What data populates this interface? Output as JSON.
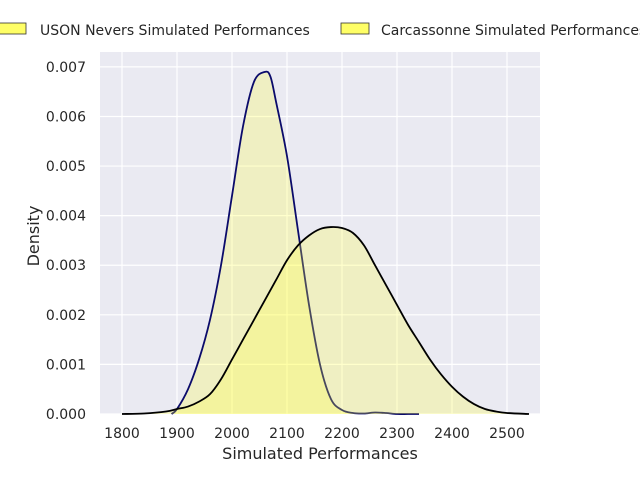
{
  "chart_data": {
    "type": "area",
    "xlabel": "Simulated Performances",
    "ylabel": "Density",
    "xlim": [
      1760,
      2560
    ],
    "ylim": [
      0,
      0.0073
    ],
    "x_ticks": [
      1800,
      1900,
      2000,
      2100,
      2200,
      2300,
      2400,
      2500
    ],
    "x_tick_labels": [
      "1800",
      "1900",
      "2000",
      "2100",
      "2200",
      "2300",
      "2400",
      "2500"
    ],
    "y_ticks": [
      0,
      0.001,
      0.002,
      0.003,
      0.004,
      0.005,
      0.006,
      0.007
    ],
    "y_tick_labels": [
      "0.000",
      "0.001",
      "0.002",
      "0.003",
      "0.004",
      "0.005",
      "0.006",
      "0.007"
    ],
    "grid": true,
    "legend_position": "top",
    "series": [
      {
        "name": "USON Nevers Simulated Performances",
        "fill_color": "#ffff33",
        "fill_opacity": 0.25,
        "line_color": "#0b0b6b",
        "x": [
          1890,
          1900,
          1920,
          1940,
          1960,
          1980,
          2000,
          2020,
          2040,
          2060,
          2070,
          2080,
          2100,
          2120,
          2140,
          2160,
          2180,
          2200,
          2220,
          2240,
          2260,
          2280,
          2300,
          2320,
          2340
        ],
        "y": [
          0.0,
          0.0001,
          0.0005,
          0.0011,
          0.0019,
          0.003,
          0.0044,
          0.0058,
          0.0067,
          0.0069,
          0.0068,
          0.0063,
          0.0052,
          0.0037,
          0.0022,
          0.001,
          0.0003,
          8e-05,
          2e-05,
          1e-05,
          3e-05,
          2e-05,
          0.0,
          0.0,
          0.0
        ]
      },
      {
        "name": "Carcassonne Simulated Performances",
        "fill_color": "#ffff33",
        "fill_opacity": 0.25,
        "line_color": "#000000",
        "x": [
          1800,
          1840,
          1880,
          1900,
          1920,
          1940,
          1960,
          1980,
          2000,
          2020,
          2040,
          2060,
          2080,
          2100,
          2120,
          2140,
          2160,
          2180,
          2200,
          2220,
          2240,
          2260,
          2280,
          2300,
          2320,
          2340,
          2360,
          2380,
          2400,
          2420,
          2440,
          2460,
          2480,
          2500,
          2540
        ],
        "y": [
          0.0,
          1e-05,
          5e-05,
          0.0001,
          0.00015,
          0.00025,
          0.0004,
          0.0007,
          0.0011,
          0.0015,
          0.0019,
          0.0023,
          0.0027,
          0.0031,
          0.0034,
          0.0036,
          0.00373,
          0.00377,
          0.00375,
          0.00365,
          0.0034,
          0.003,
          0.0026,
          0.0022,
          0.0018,
          0.00145,
          0.0011,
          0.0008,
          0.00055,
          0.00035,
          0.0002,
          0.0001,
          5e-05,
          2e-05,
          0.0
        ]
      }
    ]
  }
}
